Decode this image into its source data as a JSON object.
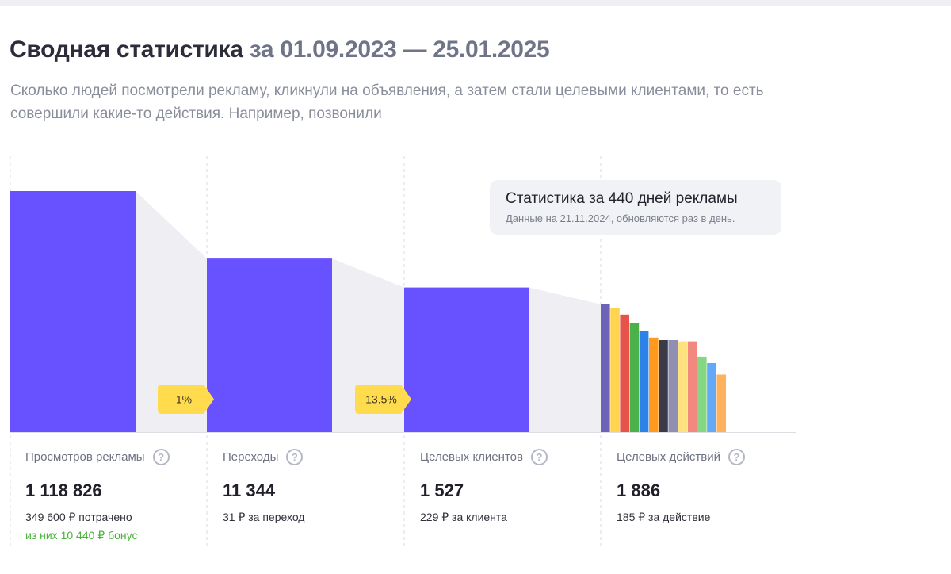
{
  "header": {
    "title": "Сводная статистика",
    "period": "за 01.09.2023 — 25.01.2025",
    "subtitle": "Сколько людей посмотрели рекламу, кликнули на объявления, а затем стали целевыми клиентами, то есть совершили какие-то действия. Например, позвонили"
  },
  "tooltip": {
    "title": "Статистика за 440 дней рекламы",
    "subtitle": "Данные на 21.11.2024, обновляются раз в день."
  },
  "columns": [
    {
      "label": "Просмотров рекламы",
      "value": "1 118 826",
      "sub": "349 600 ₽ потрачено",
      "sub2": "из них 10 440 ₽ бонус"
    },
    {
      "label": "Переходы",
      "value": "11 344",
      "sub": "31 ₽ за переход"
    },
    {
      "label": "Целевых клиентов",
      "value": "1 527",
      "sub": "229 ₽ за клиента"
    },
    {
      "label": "Целевых действий",
      "value": "1 886",
      "sub": "185 ₽ за действие"
    }
  ],
  "chart_data": {
    "type": "bar",
    "categories": [
      "Просмотров рекламы",
      "Переходы",
      "Целевых клиентов",
      "Целевых действий"
    ],
    "values": [
      1118826,
      11344,
      1527,
      1886
    ],
    "scale": "relative (funnel)",
    "relative_heights": [
      1.0,
      0.72,
      0.6,
      0.53
    ],
    "conversions": [
      {
        "after_category": 0,
        "label": "1%"
      },
      {
        "after_category": 1,
        "label": "13.5%"
      }
    ],
    "breakdown_relative_heights": [
      1.0,
      0.97,
      0.92,
      0.85,
      0.79,
      0.74,
      0.72,
      0.72,
      0.71,
      0.71,
      0.59,
      0.54,
      0.45
    ],
    "colors": {
      "main_bar": "#6851ff",
      "funnel": "#efeff3",
      "badge": "#ffdb4d",
      "breakdown": [
        "#6c63b8",
        "#ffd54f",
        "#e5534b",
        "#4bb24b",
        "#2c82e8",
        "#ff9a1f",
        "#3a3a48",
        "#8f8fb4",
        "#ffe17f",
        "#f3887f",
        "#86d783",
        "#63a9f7",
        "#ffb25e"
      ]
    },
    "grid": true
  }
}
